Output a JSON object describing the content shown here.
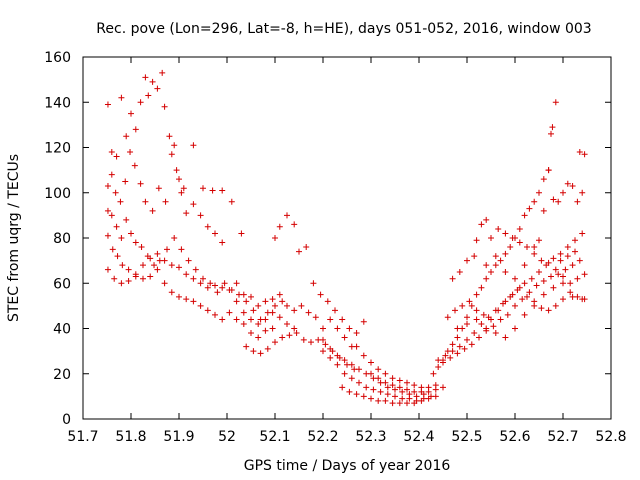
{
  "chart_data": {
    "type": "scatter",
    "title": "Rec. pove (Lon=296, Lat=-8, h=HE), days 051-052, 2016, window 003",
    "xlabel": "GPS time / Days of year 2016",
    "ylabel": "STEC from uqrg / TECUs",
    "xlim": [
      51.7,
      52.8
    ],
    "ylim": [
      0,
      160
    ],
    "x_ticks": [
      "51.7",
      "51.8",
      "51.9",
      "52",
      "52.1",
      "52.2",
      "52.3",
      "52.4",
      "52.5",
      "52.6",
      "52.7",
      "52.8"
    ],
    "y_ticks": [
      "0",
      "20",
      "40",
      "60",
      "80",
      "100",
      "120",
      "140",
      "160"
    ],
    "grid": false,
    "legend": "none",
    "marker": "plus",
    "color": "#d40000",
    "points": [
      [
        51.752,
        139
      ],
      [
        51.76,
        118
      ],
      [
        51.77,
        116
      ],
      [
        51.78,
        142
      ],
      [
        51.79,
        125
      ],
      [
        51.8,
        135
      ],
      [
        51.81,
        128
      ],
      [
        51.82,
        140
      ],
      [
        51.83,
        151
      ],
      [
        51.836,
        143
      ],
      [
        51.845,
        149
      ],
      [
        51.855,
        146
      ],
      [
        51.865,
        153
      ],
      [
        51.87,
        138
      ],
      [
        51.88,
        125
      ],
      [
        51.89,
        121
      ],
      [
        51.9,
        106
      ],
      [
        51.91,
        102
      ],
      [
        51.93,
        121
      ],
      [
        51.95,
        102
      ],
      [
        51.97,
        101
      ],
      [
        51.99,
        101
      ],
      [
        51.752,
        103
      ],
      [
        51.76,
        108
      ],
      [
        51.768,
        100
      ],
      [
        51.778,
        96
      ],
      [
        51.788,
        105
      ],
      [
        51.798,
        118
      ],
      [
        51.808,
        112
      ],
      [
        51.82,
        104
      ],
      [
        51.83,
        96
      ],
      [
        51.845,
        92
      ],
      [
        51.858,
        102
      ],
      [
        51.872,
        96
      ],
      [
        51.885,
        117
      ],
      [
        51.895,
        110
      ],
      [
        51.905,
        100
      ],
      [
        51.915,
        91
      ],
      [
        51.93,
        95
      ],
      [
        51.945,
        90
      ],
      [
        51.96,
        85
      ],
      [
        51.975,
        82
      ],
      [
        51.99,
        78
      ],
      [
        52.01,
        96
      ],
      [
        52.03,
        82
      ],
      [
        51.752,
        92
      ],
      [
        51.76,
        90
      ],
      [
        51.77,
        85
      ],
      [
        51.78,
        80
      ],
      [
        51.79,
        88
      ],
      [
        51.8,
        82
      ],
      [
        51.81,
        78
      ],
      [
        51.822,
        76
      ],
      [
        51.835,
        72
      ],
      [
        51.848,
        68
      ],
      [
        51.86,
        70
      ],
      [
        51.875,
        75
      ],
      [
        51.89,
        80
      ],
      [
        51.905,
        75
      ],
      [
        51.92,
        70
      ],
      [
        51.935,
        66
      ],
      [
        51.95,
        62
      ],
      [
        51.965,
        60
      ],
      [
        51.98,
        56
      ],
      [
        51.995,
        60
      ],
      [
        52.01,
        57
      ],
      [
        52.025,
        55
      ],
      [
        52.04,
        52
      ],
      [
        52.055,
        48
      ],
      [
        52.07,
        44
      ],
      [
        52.085,
        47
      ],
      [
        52.1,
        50
      ],
      [
        52.115,
        52
      ],
      [
        51.752,
        81
      ],
      [
        51.762,
        75
      ],
      [
        51.772,
        72
      ],
      [
        51.782,
        68
      ],
      [
        51.795,
        66
      ],
      [
        51.81,
        64
      ],
      [
        51.825,
        62
      ],
      [
        51.84,
        63
      ],
      [
        51.855,
        66
      ],
      [
        51.87,
        60
      ],
      [
        51.885,
        56
      ],
      [
        51.9,
        54
      ],
      [
        51.915,
        53
      ],
      [
        51.93,
        52
      ],
      [
        51.945,
        50
      ],
      [
        51.96,
        48
      ],
      [
        51.975,
        46
      ],
      [
        51.99,
        44
      ],
      [
        52.005,
        47
      ],
      [
        52.02,
        44
      ],
      [
        52.035,
        42
      ],
      [
        52.05,
        38
      ],
      [
        52.065,
        36
      ],
      [
        52.08,
        39
      ],
      [
        52.095,
        40
      ],
      [
        51.752,
        66
      ],
      [
        51.765,
        62
      ],
      [
        51.78,
        60
      ],
      [
        51.795,
        61
      ],
      [
        51.81,
        63
      ],
      [
        51.825,
        68
      ],
      [
        51.84,
        71
      ],
      [
        51.855,
        73
      ],
      [
        51.87,
        70
      ],
      [
        51.885,
        68
      ],
      [
        51.9,
        67
      ],
      [
        51.915,
        64
      ],
      [
        51.93,
        62
      ],
      [
        51.945,
        60
      ],
      [
        51.96,
        58
      ],
      [
        51.975,
        59
      ],
      [
        51.99,
        58
      ],
      [
        52.005,
        57
      ],
      [
        52.02,
        52
      ],
      [
        52.035,
        47
      ],
      [
        52.05,
        44
      ],
      [
        52.065,
        42
      ],
      [
        52.08,
        44
      ],
      [
        52.095,
        47
      ],
      [
        52.11,
        45
      ],
      [
        52.125,
        42
      ],
      [
        52.14,
        40
      ],
      [
        52.02,
        60
      ],
      [
        52.035,
        55
      ],
      [
        52.05,
        54
      ],
      [
        52.065,
        50
      ],
      [
        52.08,
        52
      ],
      [
        52.095,
        53
      ],
      [
        52.11,
        55
      ],
      [
        52.125,
        50
      ],
      [
        52.14,
        48
      ],
      [
        52.155,
        50
      ],
      [
        52.17,
        47
      ],
      [
        52.185,
        45
      ],
      [
        52.2,
        40
      ],
      [
        52.215,
        44
      ],
      [
        52.23,
        40
      ],
      [
        52.245,
        36
      ],
      [
        52.26,
        32
      ],
      [
        52.04,
        32
      ],
      [
        52.055,
        30
      ],
      [
        52.07,
        29
      ],
      [
        52.085,
        31
      ],
      [
        52.1,
        34
      ],
      [
        52.115,
        36
      ],
      [
        52.13,
        37
      ],
      [
        52.145,
        38
      ],
      [
        52.16,
        35
      ],
      [
        52.175,
        34
      ],
      [
        52.19,
        35
      ],
      [
        52.205,
        33
      ],
      [
        52.22,
        30
      ],
      [
        52.235,
        27
      ],
      [
        52.25,
        24
      ],
      [
        52.265,
        22
      ],
      [
        52.1,
        80
      ],
      [
        52.11,
        85
      ],
      [
        52.125,
        90
      ],
      [
        52.14,
        86
      ],
      [
        52.15,
        74
      ],
      [
        52.165,
        76
      ],
      [
        52.18,
        60
      ],
      [
        52.195,
        55
      ],
      [
        52.21,
        52
      ],
      [
        52.225,
        48
      ],
      [
        52.24,
        44
      ],
      [
        52.255,
        40
      ],
      [
        52.27,
        38
      ],
      [
        52.285,
        43
      ],
      [
        52.2,
        35
      ],
      [
        52.215,
        31
      ],
      [
        52.23,
        28
      ],
      [
        52.245,
        26
      ],
      [
        52.26,
        24
      ],
      [
        52.275,
        22
      ],
      [
        52.29,
        20
      ],
      [
        52.305,
        18
      ],
      [
        52.32,
        16
      ],
      [
        52.335,
        14
      ],
      [
        52.35,
        13
      ],
      [
        52.365,
        12
      ],
      [
        52.38,
        11
      ],
      [
        52.395,
        10
      ],
      [
        52.41,
        11
      ],
      [
        52.2,
        30
      ],
      [
        52.215,
        27
      ],
      [
        52.23,
        24
      ],
      [
        52.245,
        20
      ],
      [
        52.26,
        18
      ],
      [
        52.275,
        16
      ],
      [
        52.29,
        14
      ],
      [
        52.305,
        13
      ],
      [
        52.32,
        12
      ],
      [
        52.335,
        11
      ],
      [
        52.35,
        10
      ],
      [
        52.365,
        9
      ],
      [
        52.38,
        9
      ],
      [
        52.395,
        8
      ],
      [
        52.41,
        9
      ],
      [
        52.425,
        10
      ],
      [
        52.24,
        14
      ],
      [
        52.255,
        12
      ],
      [
        52.27,
        11
      ],
      [
        52.285,
        10
      ],
      [
        52.3,
        9
      ],
      [
        52.315,
        8
      ],
      [
        52.33,
        8
      ],
      [
        52.345,
        7
      ],
      [
        52.36,
        7
      ],
      [
        52.375,
        7
      ],
      [
        52.39,
        7
      ],
      [
        52.405,
        8
      ],
      [
        52.42,
        9
      ],
      [
        52.435,
        10
      ],
      [
        52.27,
        32
      ],
      [
        52.285,
        28
      ],
      [
        52.3,
        25
      ],
      [
        52.315,
        22
      ],
      [
        52.33,
        20
      ],
      [
        52.345,
        18
      ],
      [
        52.36,
        17
      ],
      [
        52.375,
        16
      ],
      [
        52.39,
        15
      ],
      [
        52.405,
        14
      ],
      [
        52.42,
        14
      ],
      [
        52.435,
        15
      ],
      [
        52.3,
        20
      ],
      [
        52.315,
        18
      ],
      [
        52.33,
        16
      ],
      [
        52.345,
        15
      ],
      [
        52.36,
        14
      ],
      [
        52.375,
        13
      ],
      [
        52.39,
        12
      ],
      [
        52.405,
        12
      ],
      [
        52.42,
        12
      ],
      [
        52.435,
        13
      ],
      [
        52.45,
        14
      ],
      [
        52.43,
        20
      ],
      [
        52.44,
        23
      ],
      [
        52.45,
        26
      ],
      [
        52.46,
        30
      ],
      [
        52.47,
        33
      ],
      [
        52.48,
        36
      ],
      [
        52.49,
        40
      ],
      [
        52.5,
        45
      ],
      [
        52.51,
        50
      ],
      [
        52.52,
        55
      ],
      [
        52.53,
        58
      ],
      [
        52.54,
        62
      ],
      [
        52.55,
        65
      ],
      [
        52.56,
        68
      ],
      [
        52.57,
        70
      ],
      [
        52.58,
        73
      ],
      [
        52.59,
        76
      ],
      [
        52.6,
        80
      ],
      [
        52.61,
        84
      ],
      [
        52.62,
        90
      ],
      [
        52.63,
        93
      ],
      [
        52.64,
        96
      ],
      [
        52.65,
        100
      ],
      [
        52.66,
        106
      ],
      [
        52.67,
        110
      ],
      [
        52.68,
        97
      ],
      [
        52.69,
        96
      ],
      [
        52.7,
        100
      ],
      [
        52.71,
        104
      ],
      [
        52.72,
        103
      ],
      [
        52.73,
        96
      ],
      [
        52.74,
        100
      ],
      [
        52.44,
        26
      ],
      [
        52.455,
        28
      ],
      [
        52.47,
        30
      ],
      [
        52.485,
        32
      ],
      [
        52.5,
        35
      ],
      [
        52.515,
        38
      ],
      [
        52.53,
        42
      ],
      [
        52.545,
        45
      ],
      [
        52.56,
        48
      ],
      [
        52.575,
        51
      ],
      [
        52.59,
        54
      ],
      [
        52.605,
        57
      ],
      [
        52.62,
        60
      ],
      [
        52.635,
        62
      ],
      [
        52.65,
        65
      ],
      [
        52.665,
        68
      ],
      [
        52.68,
        71
      ],
      [
        52.695,
        73
      ],
      [
        52.71,
        76
      ],
      [
        52.725,
        79
      ],
      [
        52.74,
        82
      ],
      [
        52.45,
        25
      ],
      [
        52.465,
        27
      ],
      [
        52.48,
        29
      ],
      [
        52.495,
        31
      ],
      [
        52.51,
        33
      ],
      [
        52.525,
        36
      ],
      [
        52.54,
        39
      ],
      [
        52.555,
        41
      ],
      [
        52.57,
        44
      ],
      [
        52.585,
        46
      ],
      [
        52.6,
        50
      ],
      [
        52.615,
        53
      ],
      [
        52.63,
        56
      ],
      [
        52.645,
        59
      ],
      [
        52.66,
        61
      ],
      [
        52.675,
        63
      ],
      [
        52.69,
        64
      ],
      [
        52.705,
        66
      ],
      [
        52.72,
        68
      ],
      [
        52.735,
        70
      ],
      [
        52.46,
        45
      ],
      [
        52.475,
        48
      ],
      [
        52.49,
        50
      ],
      [
        52.505,
        52
      ],
      [
        52.52,
        48
      ],
      [
        52.535,
        46
      ],
      [
        52.55,
        44
      ],
      [
        52.565,
        48
      ],
      [
        52.58,
        52
      ],
      [
        52.595,
        55
      ],
      [
        52.61,
        58
      ],
      [
        52.625,
        54
      ],
      [
        52.64,
        50
      ],
      [
        52.655,
        49
      ],
      [
        52.67,
        48
      ],
      [
        52.685,
        50
      ],
      [
        52.7,
        53
      ],
      [
        52.715,
        56
      ],
      [
        52.73,
        54
      ],
      [
        52.745,
        53
      ],
      [
        52.47,
        62
      ],
      [
        52.485,
        65
      ],
      [
        52.5,
        70
      ],
      [
        52.515,
        72
      ],
      [
        52.53,
        86
      ],
      [
        52.54,
        88
      ],
      [
        52.55,
        80
      ],
      [
        52.565,
        84
      ],
      [
        52.58,
        82
      ],
      [
        52.595,
        80
      ],
      [
        52.61,
        78
      ],
      [
        52.625,
        76
      ],
      [
        52.64,
        73
      ],
      [
        52.655,
        70
      ],
      [
        52.67,
        69
      ],
      [
        52.685,
        66
      ],
      [
        52.7,
        63
      ],
      [
        52.715,
        60
      ],
      [
        52.73,
        62
      ],
      [
        52.745,
        64
      ],
      [
        52.52,
        79
      ],
      [
        52.54,
        68
      ],
      [
        52.56,
        72
      ],
      [
        52.58,
        65
      ],
      [
        52.6,
        62
      ],
      [
        52.62,
        68
      ],
      [
        52.64,
        76
      ],
      [
        52.65,
        79
      ],
      [
        52.66,
        92
      ],
      [
        52.67,
        110
      ],
      [
        52.675,
        126
      ],
      [
        52.678,
        129
      ],
      [
        52.685,
        140
      ],
      [
        52.695,
        70
      ],
      [
        52.71,
        72
      ],
      [
        52.725,
        74
      ],
      [
        52.735,
        118
      ],
      [
        52.745,
        117
      ],
      [
        52.48,
        40
      ],
      [
        52.5,
        42
      ],
      [
        52.52,
        44
      ],
      [
        52.54,
        40
      ],
      [
        52.56,
        38
      ],
      [
        52.58,
        36
      ],
      [
        52.6,
        40
      ],
      [
        52.62,
        46
      ],
      [
        52.64,
        52
      ],
      [
        52.66,
        55
      ],
      [
        52.68,
        58
      ],
      [
        52.7,
        60
      ],
      [
        52.72,
        54
      ],
      [
        52.74,
        53
      ]
    ]
  }
}
